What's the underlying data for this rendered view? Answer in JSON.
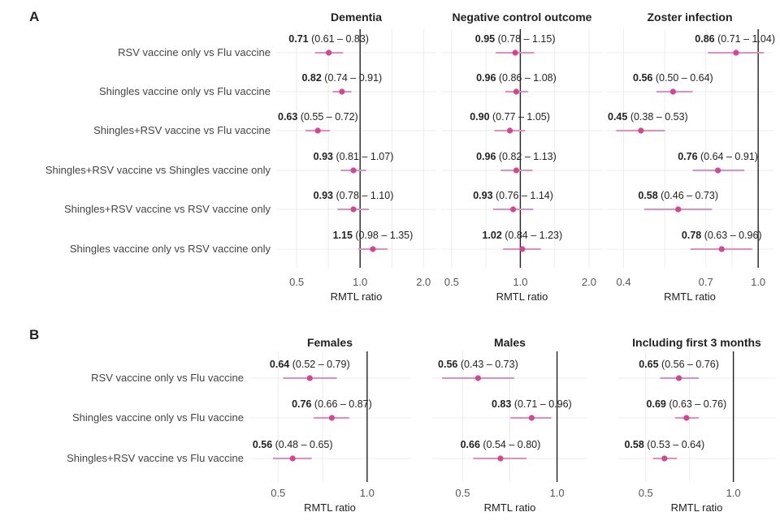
{
  "panel_a": {
    "label": "A",
    "rows": [
      "RSV vaccine only vs Flu vaccine",
      "Shingles vaccine only vs Flu vaccine",
      "Shingles+RSV vaccine vs Flu vaccine",
      "Shingles+RSV vaccine vs Shingles vaccine only",
      "Shingles+RSV vaccine vs RSV vaccine only",
      "Shingles vaccine only vs RSV vaccine only"
    ]
  },
  "panel_b": {
    "label": "B",
    "rows": [
      "RSV vaccine only vs Flu vaccine",
      "Shingles vaccine only vs Flu vaccine",
      "Shingles+RSV vaccine vs Flu vaccine"
    ]
  },
  "colors": {
    "point": "#d6458f",
    "ci": "#e48fbb",
    "ref_line": "#222222",
    "grid": "#ececec",
    "text": "#222222",
    "row_label": "#444444"
  },
  "chart_data": [
    {
      "type": "scatter",
      "panel": "A",
      "title": "Dementia",
      "xlabel": "RMTL ratio",
      "scale": "log",
      "xlim": [
        0.4,
        2.3
      ],
      "ticks": [
        0.5,
        1.0,
        2.0
      ],
      "tick_labels": [
        "0.5",
        "1.0",
        "2.0"
      ],
      "reference": 1.0,
      "estimates": [
        0.71,
        0.82,
        0.63,
        0.93,
        0.93,
        1.15
      ],
      "lower": [
        0.61,
        0.74,
        0.55,
        0.81,
        0.78,
        0.98
      ],
      "upper": [
        0.83,
        0.91,
        0.72,
        1.07,
        1.1,
        1.35
      ],
      "est_labels": [
        "0.71",
        "0.82",
        "0.63",
        "0.93",
        "0.93",
        "1.15"
      ],
      "ci_labels": [
        "(0.61 – 0.83)",
        "(0.74 – 0.91)",
        "(0.55 – 0.72)",
        "(0.81 – 1.07)",
        "(0.78 – 1.10)",
        "(0.98 – 1.35)"
      ]
    },
    {
      "type": "scatter",
      "panel": "A",
      "title": "Negative control outcome",
      "xlabel": "RMTL ratio",
      "scale": "log",
      "xlim": [
        0.45,
        2.3
      ],
      "ticks": [
        0.5,
        1.0,
        2.0
      ],
      "tick_labels": [
        "0.5",
        "1.0",
        "2.0"
      ],
      "reference": 1.0,
      "estimates": [
        0.95,
        0.96,
        0.9,
        0.96,
        0.93,
        1.02
      ],
      "lower": [
        0.78,
        0.86,
        0.77,
        0.82,
        0.76,
        0.84
      ],
      "upper": [
        1.15,
        1.08,
        1.05,
        1.13,
        1.14,
        1.23
      ],
      "est_labels": [
        "0.95",
        "0.96",
        "0.90",
        "0.96",
        "0.93",
        "1.02"
      ],
      "ci_labels": [
        "(0.78 – 1.15)",
        "(0.86 – 1.08)",
        "(0.77 – 1.05)",
        "(0.82 – 1.13)",
        "(0.76 – 1.14)",
        "(0.84 – 1.23)"
      ]
    },
    {
      "type": "scatter",
      "panel": "A",
      "title": "Zoster infection",
      "xlabel": "RMTL ratio",
      "scale": "log",
      "xlim": [
        0.355,
        1.11
      ],
      "ticks": [
        0.4,
        0.7,
        1.0
      ],
      "tick_labels": [
        "0.4",
        "0.7",
        "1.0"
      ],
      "reference": 1.0,
      "estimates": [
        0.86,
        0.56,
        0.45,
        0.76,
        0.58,
        0.78
      ],
      "lower": [
        0.71,
        0.5,
        0.38,
        0.64,
        0.46,
        0.63
      ],
      "upper": [
        1.04,
        0.64,
        0.53,
        0.91,
        0.73,
        0.96
      ],
      "est_labels": [
        "0.86",
        "0.56",
        "0.45",
        "0.76",
        "0.58",
        "0.78"
      ],
      "ci_labels": [
        "(0.71 – 1.04)",
        "(0.50 – 0.64)",
        "(0.38 – 0.53)",
        "(0.64 – 0.91)",
        "(0.46 – 0.73)",
        "(0.63 – 0.96)"
      ]
    },
    {
      "type": "scatter",
      "panel": "B",
      "title": "Females",
      "xlabel": "RMTL ratio",
      "scale": "log",
      "xlim": [
        0.4,
        1.4
      ],
      "ticks": [
        0.5,
        1.0
      ],
      "tick_labels": [
        "0.5",
        "1.0"
      ],
      "reference": 1.0,
      "estimates": [
        0.64,
        0.76,
        0.56
      ],
      "lower": [
        0.52,
        0.66,
        0.48
      ],
      "upper": [
        0.79,
        0.87,
        0.65
      ],
      "est_labels": [
        "0.64",
        "0.76",
        "0.56"
      ],
      "ci_labels": [
        "(0.52 – 0.79)",
        "(0.66 – 0.87)",
        "(0.48 – 0.65)"
      ]
    },
    {
      "type": "scatter",
      "panel": "B",
      "title": "Males",
      "xlabel": "RMTL ratio",
      "scale": "log",
      "xlim": [
        0.4,
        1.25
      ],
      "ticks": [
        0.5,
        1.0
      ],
      "tick_labels": [
        "0.5",
        "1.0"
      ],
      "reference": 1.0,
      "estimates": [
        0.56,
        0.83,
        0.66
      ],
      "lower": [
        0.43,
        0.71,
        0.54
      ],
      "upper": [
        0.73,
        0.96,
        0.8
      ],
      "est_labels": [
        "0.56",
        "0.83",
        "0.66"
      ],
      "ci_labels": [
        "(0.43 – 0.73)",
        "(0.71 – 0.96)",
        "(0.54 – 0.80)"
      ]
    },
    {
      "type": "scatter",
      "panel": "B",
      "title": "Including first 3 months",
      "xlabel": "RMTL ratio",
      "scale": "log",
      "xlim": [
        0.4,
        1.4
      ],
      "ticks": [
        0.5,
        1.0
      ],
      "tick_labels": [
        "0.5",
        "1.0"
      ],
      "reference": 1.0,
      "estimates": [
        0.65,
        0.69,
        0.58
      ],
      "lower": [
        0.56,
        0.63,
        0.53
      ],
      "upper": [
        0.76,
        0.76,
        0.64
      ],
      "est_labels": [
        "0.65",
        "0.69",
        "0.58"
      ],
      "ci_labels": [
        "(0.56 – 0.76)",
        "(0.63 – 0.76)",
        "(0.53 – 0.64)"
      ]
    }
  ]
}
